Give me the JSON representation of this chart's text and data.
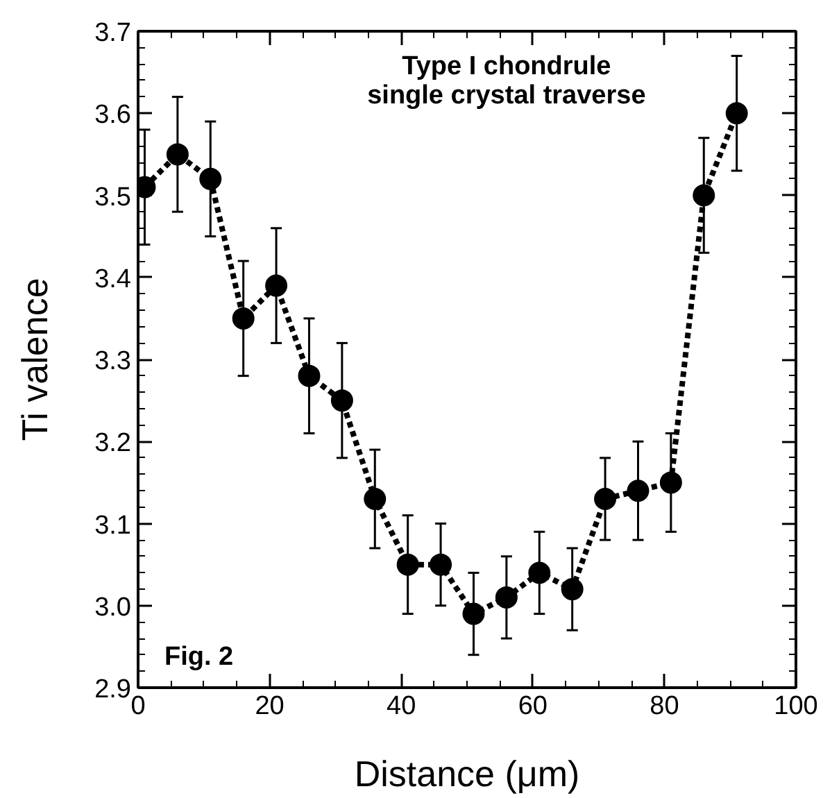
{
  "chart_data": {
    "type": "line",
    "xlabel": "Distance (μm)",
    "ylabel": "Ti valence",
    "annotations": [
      "Type I chondrule\nsingle crystal traverse",
      "Fig. 2"
    ],
    "x": [
      1,
      6,
      11,
      16,
      21,
      26,
      31,
      36,
      41,
      46,
      51,
      56,
      61,
      66,
      71,
      76,
      81,
      86,
      91
    ],
    "series": [
      {
        "color": "#000000",
        "values": [
          3.51,
          3.55,
          3.52,
          3.35,
          3.39,
          3.28,
          3.25,
          3.13,
          3.05,
          3.05,
          2.99,
          3.01,
          3.04,
          3.02,
          3.13,
          3.14,
          3.15,
          3.5,
          3.6
        ],
        "errors": [
          0.07,
          0.07,
          0.07,
          0.07,
          0.07,
          0.07,
          0.07,
          0.06,
          0.06,
          0.05,
          0.05,
          0.05,
          0.05,
          0.05,
          0.05,
          0.06,
          0.06,
          0.07,
          0.07
        ]
      }
    ],
    "xlim": [
      0,
      100
    ],
    "ylim": [
      2.9,
      3.7
    ],
    "xticks": [
      0,
      {
        "value": 5,
        "label": null
      },
      {
        "value": 10,
        "label": null
      },
      {
        "value": 15,
        "label": null
      },
      20,
      {
        "value": 25,
        "label": null
      },
      {
        "value": 30,
        "label": null
      },
      {
        "value": 35,
        "label": null
      },
      40,
      {
        "value": 45,
        "label": null
      },
      {
        "value": 50,
        "label": null
      },
      {
        "value": 55,
        "label": null
      },
      60,
      {
        "value": 65,
        "label": null
      },
      {
        "value": 70,
        "label": null
      },
      {
        "value": 75,
        "label": null
      },
      80,
      {
        "value": 85,
        "label": null
      },
      {
        "value": 90,
        "label": null
      },
      {
        "value": 95,
        "label": null
      },
      100
    ],
    "yticks": [
      {
        "value": 2.9,
        "label": "2.9"
      },
      {
        "value": 2.92,
        "label": null
      },
      {
        "value": 2.94,
        "label": null
      },
      {
        "value": 2.96,
        "label": null
      },
      {
        "value": 2.98,
        "label": null
      },
      {
        "value": 3.0,
        "label": "3.0"
      },
      {
        "value": 3.02,
        "label": null
      },
      {
        "value": 3.04,
        "label": null
      },
      {
        "value": 3.06,
        "label": null
      },
      {
        "value": 3.08,
        "label": null
      },
      {
        "value": 3.1,
        "label": "3.1"
      },
      {
        "value": 3.12,
        "label": null
      },
      {
        "value": 3.14,
        "label": null
      },
      {
        "value": 3.16,
        "label": null
      },
      {
        "value": 3.18,
        "label": null
      },
      {
        "value": 3.2,
        "label": "3.2"
      },
      {
        "value": 3.22,
        "label": null
      },
      {
        "value": 3.24,
        "label": null
      },
      {
        "value": 3.26,
        "label": null
      },
      {
        "value": 3.28,
        "label": null
      },
      {
        "value": 3.3,
        "label": "3.3"
      },
      {
        "value": 3.32,
        "label": null
      },
      {
        "value": 3.34,
        "label": null
      },
      {
        "value": 3.36,
        "label": null
      },
      {
        "value": 3.38,
        "label": null
      },
      {
        "value": 3.4,
        "label": "3.4"
      },
      {
        "value": 3.42,
        "label": null
      },
      {
        "value": 3.44,
        "label": null
      },
      {
        "value": 3.46,
        "label": null
      },
      {
        "value": 3.48,
        "label": null
      },
      {
        "value": 3.5,
        "label": "3.5"
      },
      {
        "value": 3.52,
        "label": null
      },
      {
        "value": 3.54,
        "label": null
      },
      {
        "value": 3.56,
        "label": null
      },
      {
        "value": 3.58,
        "label": null
      },
      {
        "value": 3.6,
        "label": "3.6"
      },
      {
        "value": 3.62,
        "label": null
      },
      {
        "value": 3.64,
        "label": null
      },
      {
        "value": 3.66,
        "label": null
      },
      {
        "value": 3.68,
        "label": null
      },
      {
        "value": 3.7,
        "label": "3.7"
      }
    ],
    "marker": "circle",
    "line_style": "dashed",
    "grid": false
  }
}
